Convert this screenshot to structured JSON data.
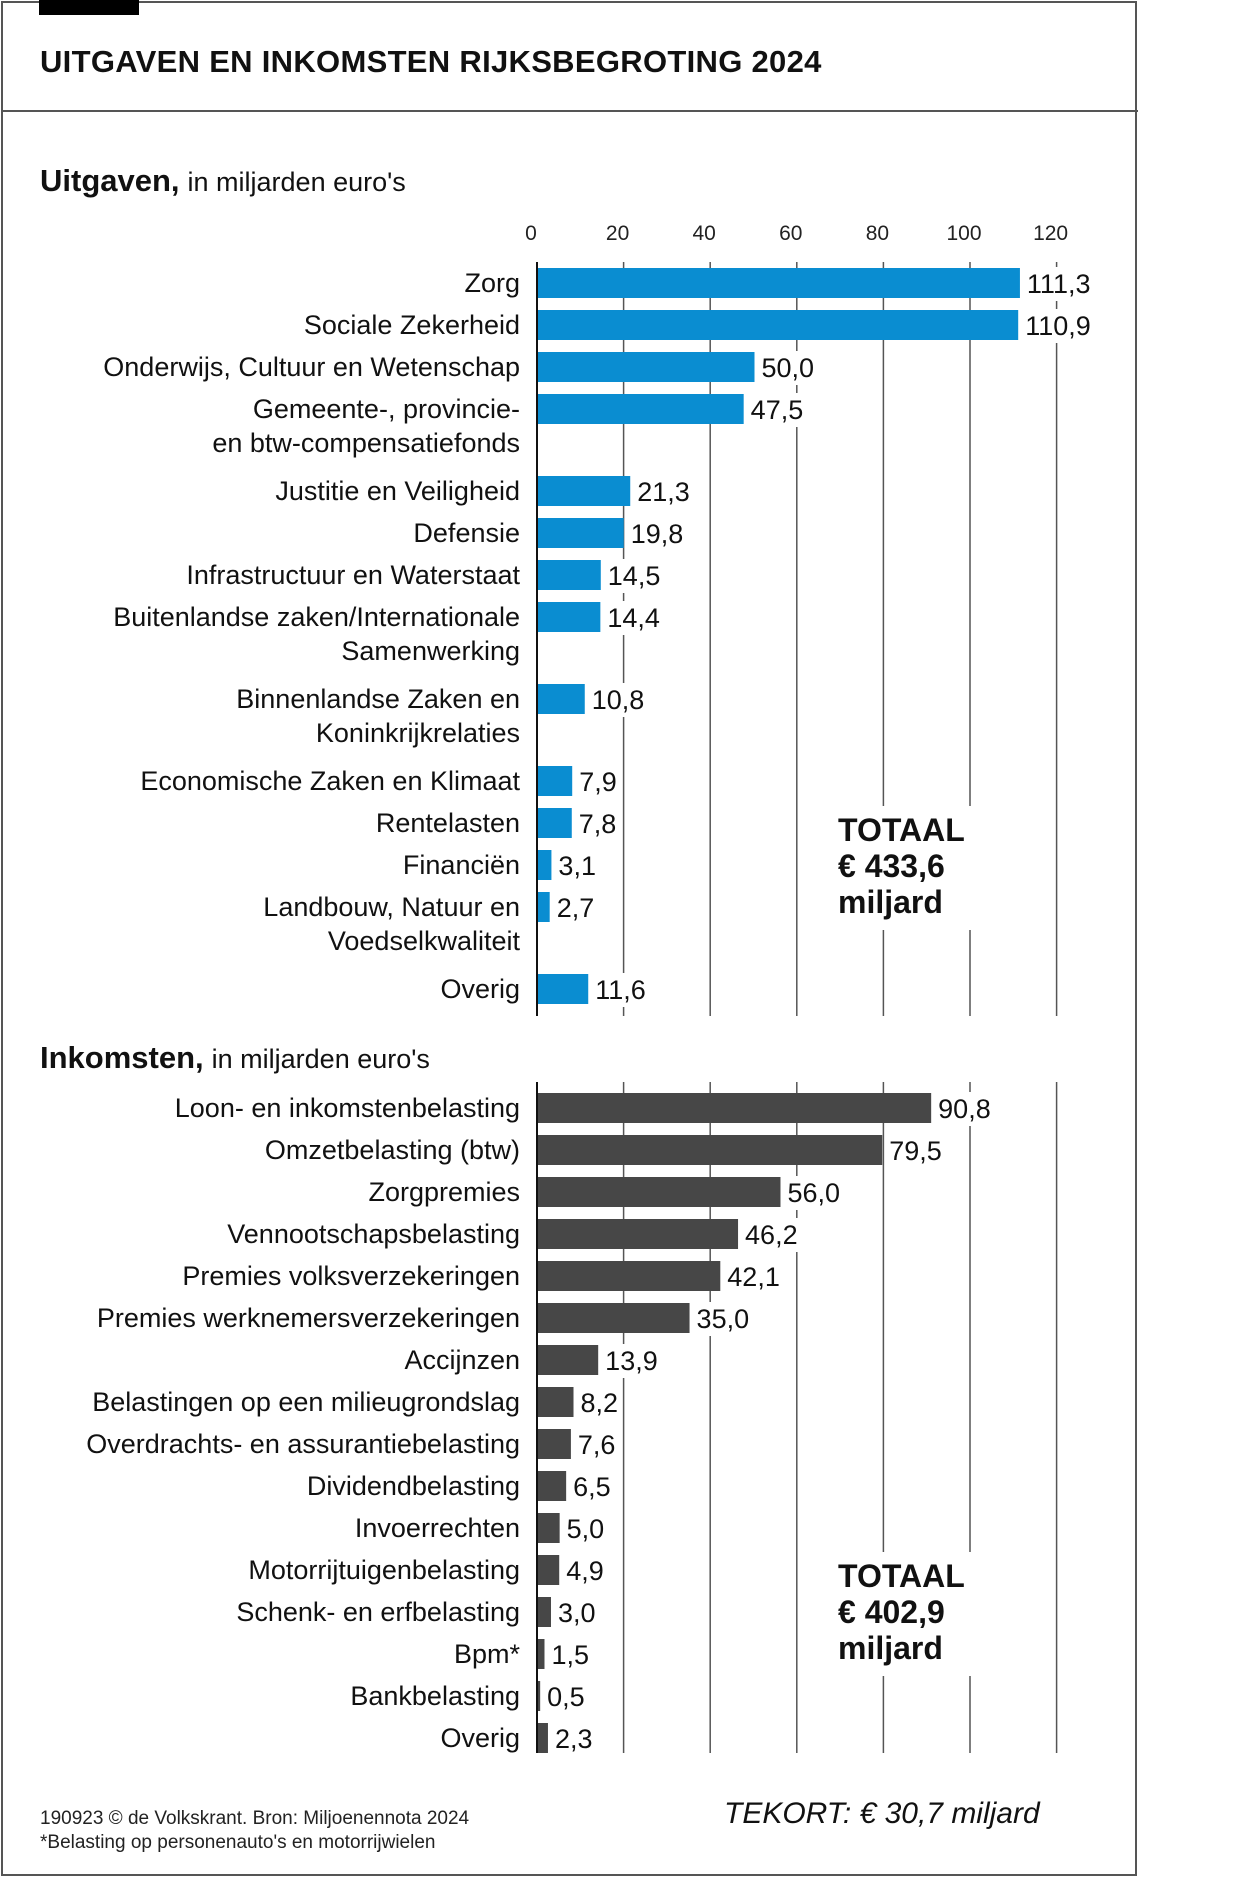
{
  "title": "UITGAVEN EN INKOMSTEN RIJKSBEGROTING 2024",
  "colors": {
    "expenses": "#0a8dd1",
    "income": "#474747",
    "grid": "#555555",
    "axis": "#111111"
  },
  "chart_data": [
    {
      "type": "bar",
      "orientation": "horizontal",
      "title": "Uitgaven,",
      "subtitle": "in miljarden euro's",
      "xlabel": "",
      "ylabel": "",
      "xlim": [
        0,
        120
      ],
      "xticks": [
        "0",
        "20",
        "40",
        "60",
        "80",
        "100",
        "120"
      ],
      "grid": true,
      "categories": [
        [
          "Zorg"
        ],
        [
          "Sociale Zekerheid"
        ],
        [
          "Onderwijs, Cultuur en Wetenschap"
        ],
        [
          "Gemeente-, provincie-",
          "en btw-compensatiefonds"
        ],
        [
          "Justitie en Veiligheid"
        ],
        [
          "Defensie"
        ],
        [
          "Infrastructuur en Waterstaat"
        ],
        [
          "Buitenlandse zaken/Internationale",
          "Samenwerking"
        ],
        [
          "Binnenlandse Zaken en",
          "Koninkrijkrelaties"
        ],
        [
          "Economische Zaken en Klimaat"
        ],
        [
          "Rentelasten"
        ],
        [
          "Financiën"
        ],
        [
          "Landbouw, Natuur en",
          "Voedselkwaliteit"
        ],
        [
          "Overig"
        ]
      ],
      "values": [
        111.3,
        110.9,
        50.0,
        47.5,
        21.3,
        19.8,
        14.5,
        14.4,
        10.8,
        7.9,
        7.8,
        3.1,
        2.7,
        11.6
      ],
      "value_labels": [
        "111,3",
        "110,9",
        "50,0",
        "47,5",
        "21,3",
        "19,8",
        "14,5",
        "14,4",
        "10,8",
        "7,9",
        "7,8",
        "3,1",
        "2,7",
        "11,6"
      ],
      "total": [
        "TOTAAL",
        "€ 433,6",
        "miljard"
      ],
      "total_value": 433.6
    },
    {
      "type": "bar",
      "orientation": "horizontal",
      "title": "Inkomsten,",
      "subtitle": "in miljarden euro's",
      "xlabel": "",
      "ylabel": "",
      "xlim": [
        0,
        120
      ],
      "grid": true,
      "categories": [
        [
          "Loon- en inkomstenbelasting"
        ],
        [
          "Omzetbelasting (btw)"
        ],
        [
          "Zorgpremies"
        ],
        [
          "Vennootschapsbelasting"
        ],
        [
          "Premies volksverzekeringen"
        ],
        [
          "Premies werknemersverzekeringen"
        ],
        [
          "Accijnzen"
        ],
        [
          "Belastingen op een milieugrondslag"
        ],
        [
          "Overdrachts- en assurantiebelasting"
        ],
        [
          "Dividendbelasting"
        ],
        [
          "Invoerrechten"
        ],
        [
          "Motorrijtuigenbelasting"
        ],
        [
          "Schenk- en erfbelasting"
        ],
        [
          "Bpm*"
        ],
        [
          "Bankbelasting"
        ],
        [
          "Overig"
        ]
      ],
      "values": [
        90.8,
        79.5,
        56.0,
        46.2,
        42.1,
        35.0,
        13.9,
        8.2,
        7.6,
        6.5,
        5.0,
        4.9,
        3.0,
        1.5,
        0.5,
        2.3
      ],
      "value_labels": [
        "90,8",
        "79,5",
        "56,0",
        "46,2",
        "42,1",
        "35,0",
        "13,9",
        "8,2",
        "7,6",
        "6,5",
        "5,0",
        "4,9",
        "3,0",
        "1,5",
        "0,5",
        "2,3"
      ],
      "total": [
        "TOTAAL",
        "€ 402,9",
        "miljard"
      ],
      "total_value": 402.9
    }
  ],
  "deficit": "TEKORT: € 30,7 miljard",
  "deficit_value": 30.7,
  "footer": {
    "credit": "190923 © de Volkskrant. Bron: Miljoenennota 2024",
    "note": "*Belasting op personenauto's en motorrijwielen"
  }
}
